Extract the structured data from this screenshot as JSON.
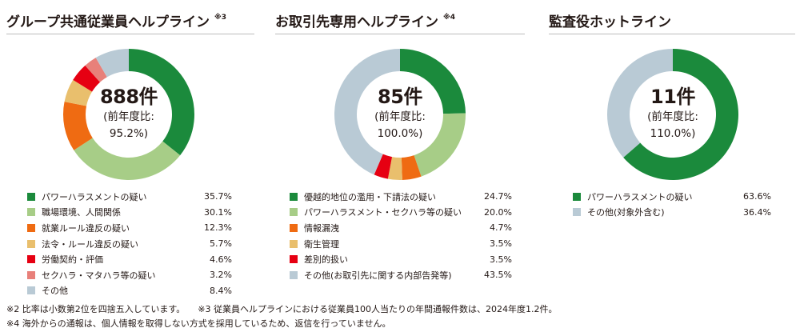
{
  "chart_data": [
    {
      "type": "pie",
      "title": "グループ共通従業員ヘルプライン",
      "title_note": "※3",
      "center_value": "888件",
      "center_label_1": "(前年度比:",
      "center_label_2": "95.2%)",
      "legend_position": "bottom",
      "slices": [
        {
          "label": "パワーハラスメントの疑い",
          "value": 35.7,
          "display": "35.7%",
          "color": "#1b8a3c"
        },
        {
          "label": "職場環境、人間関係",
          "value": 30.1,
          "display": "30.1%",
          "color": "#a7cd87"
        },
        {
          "label": "就業ルール違反の疑い",
          "value": 12.3,
          "display": "12.3%",
          "color": "#ef6b12"
        },
        {
          "label": "法令・ルール違反の疑い",
          "value": 5.7,
          "display": "5.7%",
          "color": "#e9bf6d"
        },
        {
          "label": "労働契約・評価",
          "value": 4.6,
          "display": "4.6%",
          "color": "#e60012"
        },
        {
          "label": "セクハラ・マタハラ等の疑い",
          "value": 3.2,
          "display": "3.2%",
          "color": "#e8807a"
        },
        {
          "label": "その他",
          "value": 8.4,
          "display": "8.4%",
          "color": "#b9cad5"
        }
      ]
    },
    {
      "type": "pie",
      "title": "お取引先専用ヘルプライン",
      "title_note": "※4",
      "center_value": "85件",
      "center_label_1": "(前年度比:",
      "center_label_2": "100.0%)",
      "legend_position": "bottom",
      "slices": [
        {
          "label": "優越的地位の濫用・下請法の疑い",
          "value": 24.7,
          "display": "24.7%",
          "color": "#1b8a3c"
        },
        {
          "label": "パワーハラスメント・セクハラ等の疑い",
          "value": 20.0,
          "display": "20.0%",
          "color": "#a7cd87"
        },
        {
          "label": "情報漏洩",
          "value": 4.7,
          "display": "4.7%",
          "color": "#ef6b12"
        },
        {
          "label": "衛生管理",
          "value": 3.5,
          "display": "3.5%",
          "color": "#e9bf6d"
        },
        {
          "label": "差別的扱い",
          "value": 3.5,
          "display": "3.5%",
          "color": "#e60012"
        },
        {
          "label": "その他(お取引先に関する内部告発等)",
          "value": 43.5,
          "display": "43.5%",
          "color": "#b9cad5"
        }
      ]
    },
    {
      "type": "pie",
      "title": "監査役ホットライン",
      "title_note": "",
      "center_value": "11件",
      "center_label_1": "(前年度比:",
      "center_label_2": "110.0%)",
      "legend_position": "bottom",
      "slices": [
        {
          "label": "パワーハラスメントの疑い",
          "value": 63.6,
          "display": "63.6%",
          "color": "#1b8a3c"
        },
        {
          "label": "その他(対象外含む)",
          "value": 36.4,
          "display": "36.4%",
          "color": "#b9cad5"
        }
      ]
    }
  ],
  "notes": {
    "n2": "※2 比率は小数第2位を四捨五入しています。",
    "n3": "※3 従業員ヘルプラインにおける従業員100人当たりの年間通報件数は、2024年度1.2件。",
    "n4": "※4 海外からの通報は、個人情報を取得しない方式を採用しているため、返信を行っていません。"
  }
}
